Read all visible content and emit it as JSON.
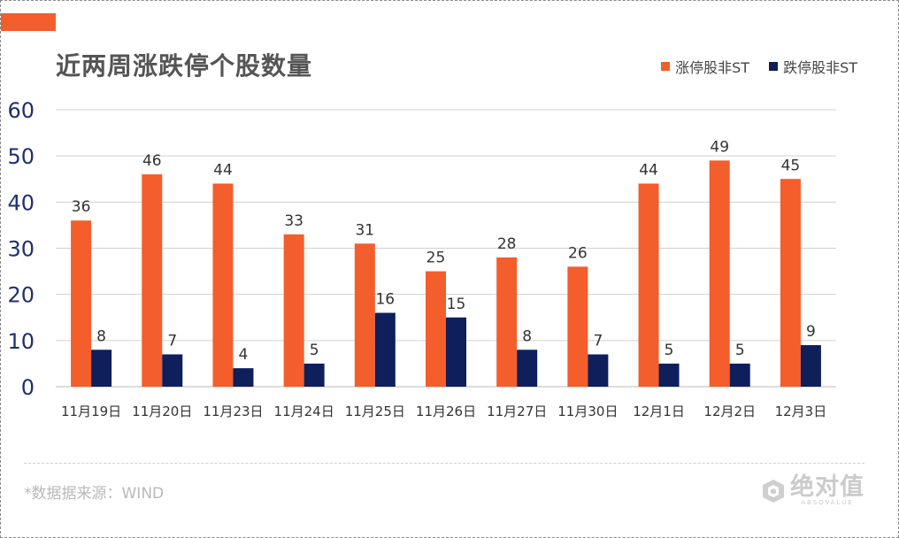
{
  "chart_data": {
    "type": "bar",
    "title": "近两周涨跌停个股数量",
    "categories": [
      "11月19日",
      "11月20日",
      "11月23日",
      "11月24日",
      "11月25日",
      "11月26日",
      "11月27日",
      "11月30日",
      "12月1日",
      "12月2日",
      "12月3日"
    ],
    "series": [
      {
        "name": "涨停股非ST",
        "color": "#f45d2c",
        "values": [
          36,
          46,
          44,
          33,
          31,
          25,
          28,
          26,
          44,
          49,
          45
        ]
      },
      {
        "name": "跌停股非ST",
        "color": "#0e1f5b",
        "values": [
          8,
          7,
          4,
          5,
          16,
          15,
          8,
          7,
          5,
          5,
          9
        ]
      }
    ],
    "ylim": [
      0,
      60
    ],
    "yticks": [
      0,
      10,
      20,
      30,
      40,
      50,
      60
    ],
    "grid": true,
    "legend_position": "top-right",
    "data_labels": true
  },
  "footer": {
    "source": "*数据据来源：WIND",
    "watermark_cn": "绝对值",
    "watermark_en": "ABSOVALUE"
  },
  "colors": {
    "accent": "#f45d2c",
    "series_up": "#f45d2c",
    "series_down": "#0e1f5b",
    "axis_text": "#1f2f6e",
    "grid": "#d0d0d0"
  }
}
